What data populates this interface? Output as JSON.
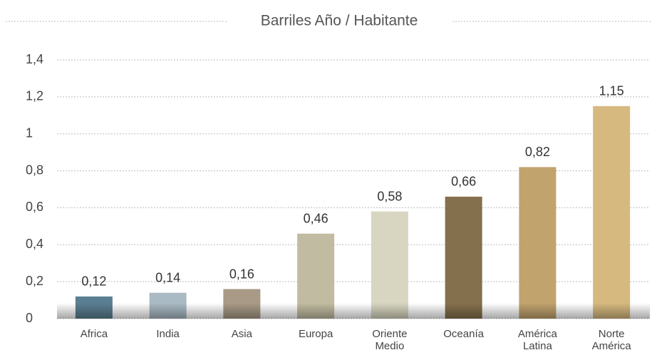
{
  "chart_data": {
    "type": "bar",
    "title": "Barriles Año / Habitante",
    "categories": [
      "Africa",
      "India",
      "Asia",
      "Europa",
      "Oriente Medio",
      "Oceanía",
      "América Latina",
      "Norte América"
    ],
    "values": [
      0.12,
      0.14,
      0.16,
      0.46,
      0.58,
      0.66,
      0.82,
      1.15
    ],
    "value_labels": [
      "0,12",
      "0,14",
      "0,16",
      "0,46",
      "0,58",
      "0,66",
      "0,82",
      "1,15"
    ],
    "colors": [
      "#5b7f92",
      "#a9bac4",
      "#a89a86",
      "#c1bca1",
      "#d8d6c1",
      "#85704d",
      "#c1a36e",
      "#d6b97f"
    ],
    "ylim": [
      0,
      1.4
    ],
    "yticks": [
      0,
      {
        "value": 0.2,
        "label": "0,2"
      },
      {
        "value": 0.4,
        "label": "0,4"
      },
      {
        "value": 0.6,
        "label": "0,6"
      },
      {
        "value": 0.8,
        "label": "0,8"
      },
      1,
      {
        "value": 1.2,
        "label": "1,2"
      },
      {
        "value": 1.4,
        "label": "1,4"
      }
    ],
    "grid": true
  }
}
